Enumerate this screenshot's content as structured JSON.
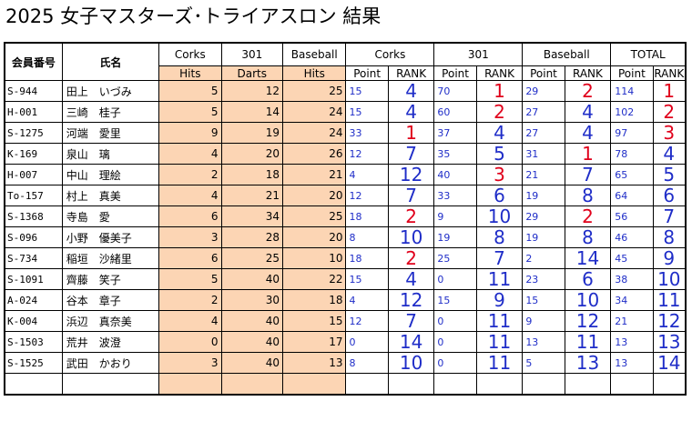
{
  "title": "2025 女子マスターズ･トライアスロン 結果",
  "headers": {
    "member_no": "会員番号",
    "name": "氏名",
    "corks": "Corks",
    "darts": "301",
    "baseball": "Baseball",
    "total": "TOTAL",
    "hits": "Hits",
    "darts_sub": "Darts",
    "point": "Point",
    "rank": "RANK"
  },
  "rows": [
    {
      "id": "S-944",
      "name": "田上　いづみ",
      "corks_hits": "5",
      "darts": "12",
      "baseball_hits": "25",
      "corks_pt": "15",
      "corks_rank": "4",
      "darts_pt": "70",
      "darts_rank": "1",
      "bb_pt": "29",
      "bb_rank": "2",
      "total_pt": "114",
      "total_rank": "1"
    },
    {
      "id": "H-001",
      "name": "三崎　桂子",
      "corks_hits": "5",
      "darts": "14",
      "baseball_hits": "24",
      "corks_pt": "15",
      "corks_rank": "4",
      "darts_pt": "60",
      "darts_rank": "2",
      "bb_pt": "27",
      "bb_rank": "4",
      "total_pt": "102",
      "total_rank": "2"
    },
    {
      "id": "S-1275",
      "name": "河端　愛里",
      "corks_hits": "9",
      "darts": "19",
      "baseball_hits": "24",
      "corks_pt": "33",
      "corks_rank": "1",
      "darts_pt": "37",
      "darts_rank": "4",
      "bb_pt": "27",
      "bb_rank": "4",
      "total_pt": "97",
      "total_rank": "3"
    },
    {
      "id": "K-169",
      "name": "泉山　璃",
      "corks_hits": "4",
      "darts": "20",
      "baseball_hits": "26",
      "corks_pt": "12",
      "corks_rank": "7",
      "darts_pt": "35",
      "darts_rank": "5",
      "bb_pt": "31",
      "bb_rank": "1",
      "total_pt": "78",
      "total_rank": "4"
    },
    {
      "id": "H-007",
      "name": "中山　理絵",
      "corks_hits": "2",
      "darts": "18",
      "baseball_hits": "21",
      "corks_pt": "4",
      "corks_rank": "12",
      "darts_pt": "40",
      "darts_rank": "3",
      "bb_pt": "21",
      "bb_rank": "7",
      "total_pt": "65",
      "total_rank": "5"
    },
    {
      "id": "To-157",
      "name": "村上　真美",
      "corks_hits": "4",
      "darts": "21",
      "baseball_hits": "20",
      "corks_pt": "12",
      "corks_rank": "7",
      "darts_pt": "33",
      "darts_rank": "6",
      "bb_pt": "19",
      "bb_rank": "8",
      "total_pt": "64",
      "total_rank": "6"
    },
    {
      "id": "S-1368",
      "name": "寺島　愛",
      "corks_hits": "6",
      "darts": "34",
      "baseball_hits": "25",
      "corks_pt": "18",
      "corks_rank": "2",
      "darts_pt": "9",
      "darts_rank": "10",
      "bb_pt": "29",
      "bb_rank": "2",
      "total_pt": "56",
      "total_rank": "7"
    },
    {
      "id": "S-096",
      "name": "小野　優美子",
      "corks_hits": "3",
      "darts": "28",
      "baseball_hits": "20",
      "corks_pt": "8",
      "corks_rank": "10",
      "darts_pt": "19",
      "darts_rank": "8",
      "bb_pt": "19",
      "bb_rank": "8",
      "total_pt": "46",
      "total_rank": "8"
    },
    {
      "id": "S-734",
      "name": "稲垣　沙緒里",
      "corks_hits": "6",
      "darts": "25",
      "baseball_hits": "10",
      "corks_pt": "18",
      "corks_rank": "2",
      "darts_pt": "25",
      "darts_rank": "7",
      "bb_pt": "2",
      "bb_rank": "14",
      "total_pt": "45",
      "total_rank": "9"
    },
    {
      "id": "S-1091",
      "name": "齊藤　笑子",
      "corks_hits": "5",
      "darts": "40",
      "baseball_hits": "22",
      "corks_pt": "15",
      "corks_rank": "4",
      "darts_pt": "0",
      "darts_rank": "11",
      "bb_pt": "23",
      "bb_rank": "6",
      "total_pt": "38",
      "total_rank": "10"
    },
    {
      "id": "A-024",
      "name": "谷本　章子",
      "corks_hits": "2",
      "darts": "30",
      "baseball_hits": "18",
      "corks_pt": "4",
      "corks_rank": "12",
      "darts_pt": "15",
      "darts_rank": "9",
      "bb_pt": "15",
      "bb_rank": "10",
      "total_pt": "34",
      "total_rank": "11"
    },
    {
      "id": "K-004",
      "name": "浜辺　真奈美",
      "corks_hits": "4",
      "darts": "40",
      "baseball_hits": "15",
      "corks_pt": "12",
      "corks_rank": "7",
      "darts_pt": "0",
      "darts_rank": "11",
      "bb_pt": "9",
      "bb_rank": "12",
      "total_pt": "21",
      "total_rank": "12"
    },
    {
      "id": "S-1503",
      "name": "荒井　波澄",
      "corks_hits": "0",
      "darts": "40",
      "baseball_hits": "17",
      "corks_pt": "0",
      "corks_rank": "14",
      "darts_pt": "0",
      "darts_rank": "11",
      "bb_pt": "13",
      "bb_rank": "11",
      "total_pt": "13",
      "total_rank": "13"
    },
    {
      "id": "S-1525",
      "name": "武田　かおり",
      "corks_hits": "3",
      "darts": "40",
      "baseball_hits": "13",
      "corks_pt": "8",
      "corks_rank": "10",
      "darts_pt": "0",
      "darts_rank": "11",
      "bb_pt": "5",
      "bb_rank": "13",
      "total_pt": "13",
      "total_rank": "14"
    }
  ],
  "colors": {
    "rank_top3": "#e0001b",
    "rank_other": "#1f2dc8",
    "input_fill": "#fcd5b4"
  }
}
